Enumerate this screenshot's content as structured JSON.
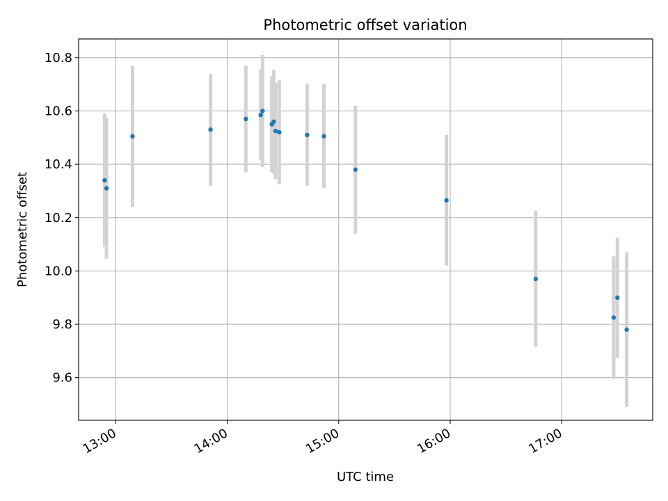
{
  "chart_data": {
    "type": "scatter",
    "title": "Photometric offset variation",
    "xlabel": "UTC time",
    "ylabel": "Photometric offset",
    "x_format": "time-hh:mm",
    "xlim": [
      "12:40",
      "17:49"
    ],
    "ylim": [
      9.44,
      10.87
    ],
    "x_ticks": [
      "13:00",
      "14:00",
      "15:00",
      "16:00",
      "17:00"
    ],
    "y_ticks": [
      "9.6",
      "9.8",
      "10.0",
      "10.2",
      "10.4",
      "10.6",
      "10.8"
    ],
    "grid": true,
    "legend": "none",
    "colors": {
      "point": "#1f77b4",
      "error_bar": "#d3d3d3"
    },
    "series": [
      {
        "x": [
          "12:54",
          "12:55",
          "13:09",
          "13:51",
          "14:10",
          "14:18",
          "14:19",
          "14:24",
          "14:25",
          "14:26",
          "14:28",
          "14:43",
          "14:52",
          "15:09",
          "15:58",
          "16:46",
          "17:28",
          "17:30",
          "17:35"
        ],
        "y": [
          10.34,
          10.31,
          10.505,
          10.53,
          10.57,
          10.585,
          10.6,
          10.55,
          10.56,
          10.525,
          10.52,
          10.51,
          10.505,
          10.38,
          10.265,
          9.97,
          9.825,
          9.9,
          9.78
        ],
        "yerr": [
          0.25,
          0.265,
          0.265,
          0.21,
          0.2,
          0.17,
          0.21,
          0.18,
          0.195,
          0.18,
          0.195,
          0.19,
          0.195,
          0.24,
          0.245,
          0.255,
          0.23,
          0.225,
          0.29
        ]
      }
    ]
  }
}
